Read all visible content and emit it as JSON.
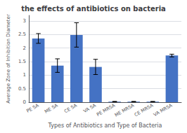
{
  "chart_data": {
    "type": "bar",
    "title": "the effects of antibiotics on bacteria",
    "xlabel": "Types of Antibiotics and Type of Bacteria",
    "ylabel": "Average Zone of Inhibition Diameter",
    "categories": [
      "PE SA",
      "ME SA",
      "CE SA",
      "VA SA",
      "PE MRSA",
      "ME MRSA",
      "CE MRSA",
      "VA MRSA"
    ],
    "values": [
      2.35,
      1.35,
      2.48,
      1.3,
      0.02,
      0.02,
      0.02,
      1.72
    ],
    "errors": [
      0.18,
      0.25,
      0.45,
      0.28,
      0.01,
      0.01,
      0.01,
      0.05
    ],
    "color": "#4472C4",
    "ylim": [
      0,
      3.2
    ],
    "yticks": [
      0,
      0.5,
      1,
      1.5,
      2,
      2.5,
      3
    ],
    "grid": true
  }
}
